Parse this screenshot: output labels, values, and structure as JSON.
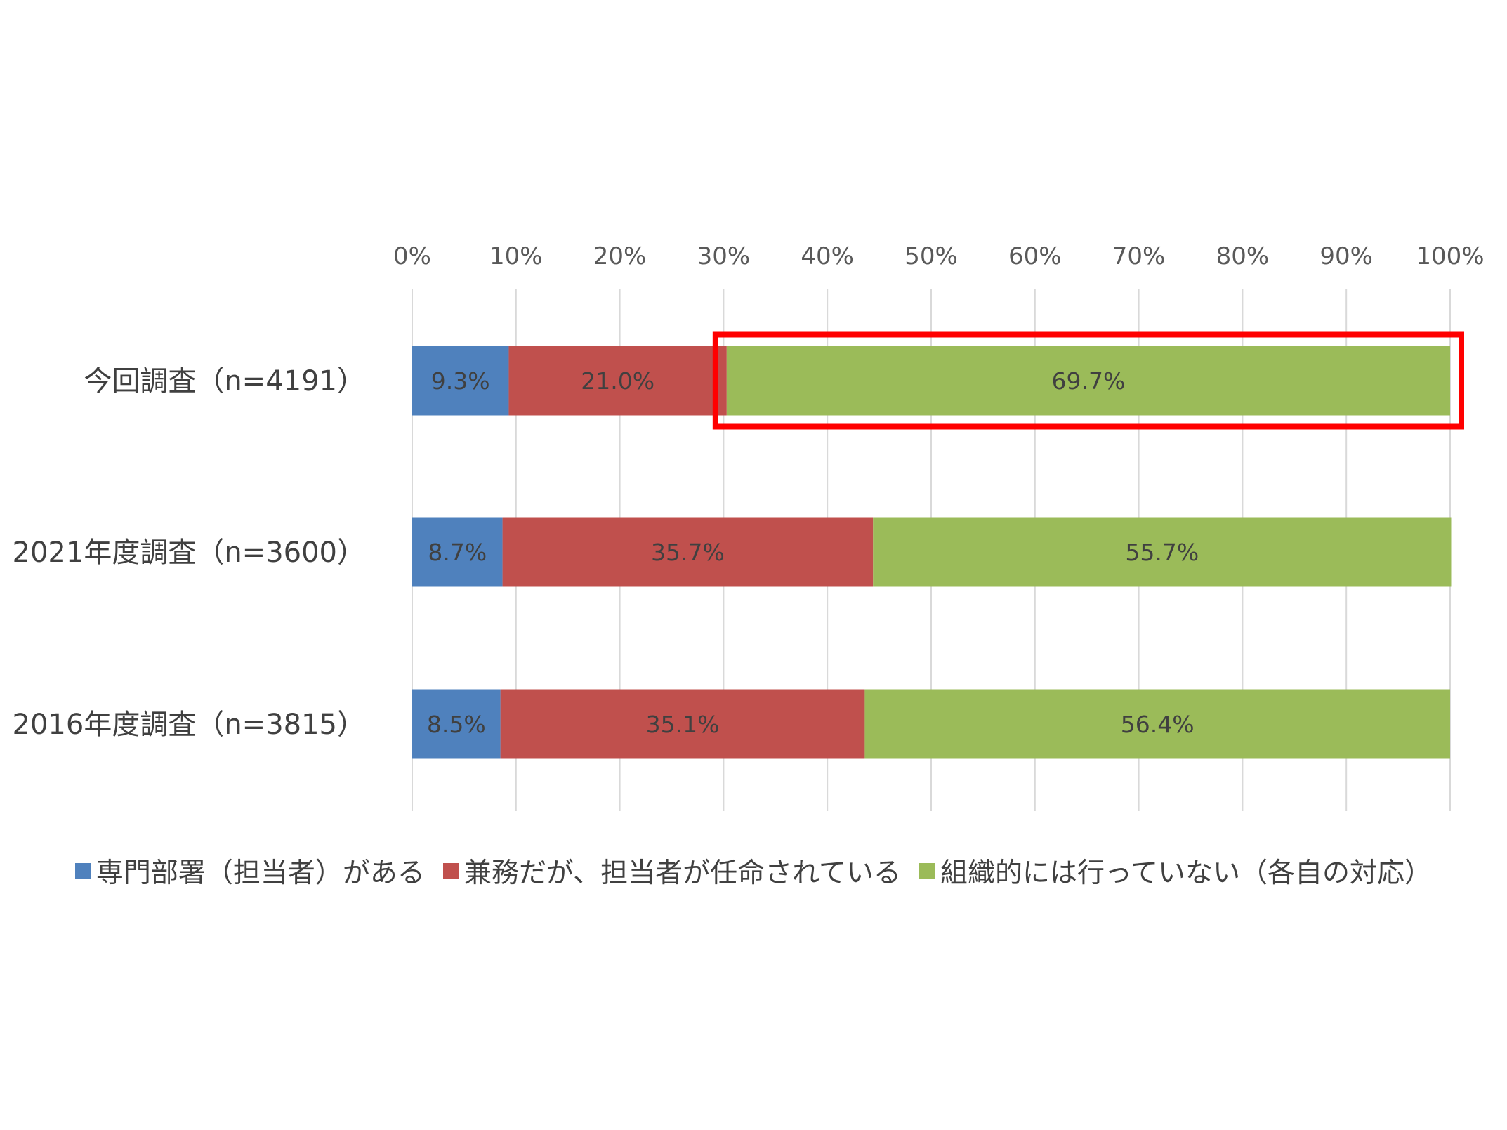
{
  "chart_data": {
    "type": "bar",
    "orientation": "horizontal",
    "stacked": "percent",
    "categories": [
      "今回調査（n=4191）",
      "2021年度調査（n=3600）",
      "2016年度調査（n=3815）"
    ],
    "series": [
      {
        "name": "専門部署（担当者）がある",
        "color": "#4F81BD",
        "values": [
          9.3,
          8.7,
          8.5
        ],
        "labels": [
          "9.3%",
          "8.7%",
          "8.5%"
        ]
      },
      {
        "name": "兼務だが、担当者が任命されている",
        "color": "#C0504D",
        "values": [
          21.0,
          35.7,
          35.1
        ],
        "labels": [
          "21.0%",
          "35.7%",
          "35.1%"
        ]
      },
      {
        "name": "組織的には行っていない（各自の対応）",
        "color": "#9BBB59",
        "values": [
          69.7,
          55.7,
          56.4
        ],
        "labels": [
          "69.7%",
          "55.7%",
          "56.4%"
        ]
      }
    ],
    "xlim": [
      0,
      100
    ],
    "x_ticks": [
      "0%",
      "10%",
      "20%",
      "30%",
      "40%",
      "50%",
      "60%",
      "70%",
      "80%",
      "90%",
      "100%"
    ],
    "axis_position": "top",
    "grid": true,
    "legend": "bottom",
    "highlight": {
      "category_index": 0,
      "series_index": 2,
      "color": "#FF0000"
    }
  }
}
